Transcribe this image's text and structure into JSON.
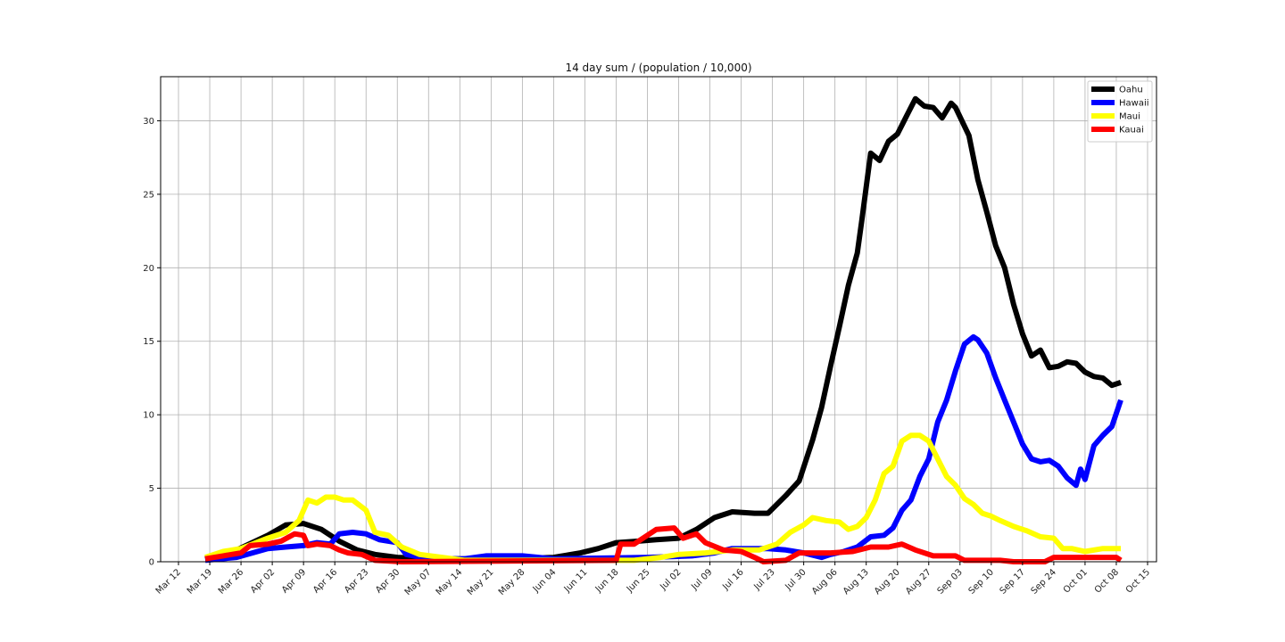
{
  "chart_data": {
    "type": "line",
    "title": "14 day sum / (population / 10,000)",
    "xlabel": "",
    "ylabel": "",
    "x_start": "Mar 18",
    "x_end": "Oct 09",
    "xlim": [
      "Mar 08",
      "Oct 17"
    ],
    "ylim": [
      0,
      33
    ],
    "x_tick_labels": [
      "Mar 12",
      "Mar 19",
      "Mar 26",
      "Apr 02",
      "Apr 09",
      "Apr 16",
      "Apr 23",
      "Apr 30",
      "May 07",
      "May 14",
      "May 21",
      "May 28",
      "Jun 04",
      "Jun 11",
      "Jun 18",
      "Jun 25",
      "Jul 02",
      "Jul 09",
      "Jul 16",
      "Jul 23",
      "Jul 30",
      "Aug 06",
      "Aug 13",
      "Aug 20",
      "Aug 27",
      "Sep 03",
      "Sep 10",
      "Sep 17",
      "Sep 24",
      "Oct 01",
      "Oct 08",
      "Oct 15"
    ],
    "y_ticks": [
      0,
      5,
      10,
      15,
      20,
      25,
      30
    ],
    "grid": true,
    "legend_position": "top-right",
    "series": [
      {
        "name": "Oahu",
        "color": "#000000",
        "points": [
          [
            "Mar 18",
            0.2
          ],
          [
            "Mar 25",
            0.8
          ],
          [
            "Apr 01",
            1.8
          ],
          [
            "Apr 05",
            2.5
          ],
          [
            "Apr 09",
            2.6
          ],
          [
            "Apr 13",
            2.2
          ],
          [
            "Apr 17",
            1.4
          ],
          [
            "Apr 21",
            0.8
          ],
          [
            "Apr 25",
            0.5
          ],
          [
            "Apr 30",
            0.3
          ],
          [
            "May 10",
            0.2
          ],
          [
            "May 25",
            0.2
          ],
          [
            "Jun 04",
            0.3
          ],
          [
            "Jun 10",
            0.6
          ],
          [
            "Jun 14",
            0.9
          ],
          [
            "Jun 18",
            1.3
          ],
          [
            "Jun 23",
            1.4
          ],
          [
            "Jun 27",
            1.5
          ],
          [
            "Jul 02",
            1.6
          ],
          [
            "Jul 06",
            2.2
          ],
          [
            "Jul 10",
            3.0
          ],
          [
            "Jul 14",
            3.4
          ],
          [
            "Jul 19",
            3.3
          ],
          [
            "Jul 22",
            3.3
          ],
          [
            "Jul 26",
            4.5
          ],
          [
            "Jul 29",
            5.5
          ],
          [
            "Aug 01",
            8.3
          ],
          [
            "Aug 03",
            10.5
          ],
          [
            "Aug 05",
            13.3
          ],
          [
            "Aug 07",
            16.0
          ],
          [
            "Aug 09",
            18.8
          ],
          [
            "Aug 11",
            21.0
          ],
          [
            "Aug 12",
            23.2
          ],
          [
            "Aug 14",
            27.8
          ],
          [
            "Aug 16",
            27.3
          ],
          [
            "Aug 18",
            28.6
          ],
          [
            "Aug 20",
            29.1
          ],
          [
            "Aug 22",
            30.3
          ],
          [
            "Aug 24",
            31.5
          ],
          [
            "Aug 26",
            31.0
          ],
          [
            "Aug 28",
            30.9
          ],
          [
            "Aug 30",
            30.2
          ],
          [
            "Sep 01",
            31.2
          ],
          [
            "Sep 02",
            30.9
          ],
          [
            "Sep 05",
            29.0
          ],
          [
            "Sep 07",
            26.0
          ],
          [
            "Sep 09",
            23.8
          ],
          [
            "Sep 11",
            21.5
          ],
          [
            "Sep 13",
            20.0
          ],
          [
            "Sep 15",
            17.5
          ],
          [
            "Sep 17",
            15.5
          ],
          [
            "Sep 19",
            14.0
          ],
          [
            "Sep 21",
            14.4
          ],
          [
            "Sep 23",
            13.2
          ],
          [
            "Sep 25",
            13.3
          ],
          [
            "Sep 27",
            13.6
          ],
          [
            "Sep 29",
            13.5
          ],
          [
            "Oct 01",
            12.9
          ],
          [
            "Oct 03",
            12.6
          ],
          [
            "Oct 05",
            12.5
          ],
          [
            "Oct 07",
            12.0
          ],
          [
            "Oct 09",
            12.2
          ]
        ]
      },
      {
        "name": "Hawaii",
        "color": "#0000ff",
        "points": [
          [
            "Mar 18",
            0.1
          ],
          [
            "Mar 25",
            0.3
          ],
          [
            "Apr 01",
            0.9
          ],
          [
            "Apr 05",
            1.0
          ],
          [
            "Apr 09",
            1.1
          ],
          [
            "Apr 12",
            1.3
          ],
          [
            "Apr 15",
            1.2
          ],
          [
            "Apr 17",
            1.9
          ],
          [
            "Apr 20",
            2.0
          ],
          [
            "Apr 23",
            1.9
          ],
          [
            "Apr 26",
            1.5
          ],
          [
            "Apr 30",
            1.3
          ],
          [
            "May 02",
            0.5
          ],
          [
            "May 07",
            0.2
          ],
          [
            "May 15",
            0.2
          ],
          [
            "May 20",
            0.4
          ],
          [
            "May 28",
            0.4
          ],
          [
            "Jun 04",
            0.2
          ],
          [
            "Jun 25",
            0.3
          ],
          [
            "Jul 05",
            0.4
          ],
          [
            "Jul 10",
            0.6
          ],
          [
            "Jul 14",
            0.9
          ],
          [
            "Jul 18",
            0.9
          ],
          [
            "Jul 22",
            0.9
          ],
          [
            "Jul 26",
            0.8
          ],
          [
            "Jul 30",
            0.6
          ],
          [
            "Aug 03",
            0.3
          ],
          [
            "Aug 05",
            0.5
          ],
          [
            "Aug 08",
            0.7
          ],
          [
            "Aug 11",
            1.0
          ],
          [
            "Aug 14",
            1.7
          ],
          [
            "Aug 17",
            1.8
          ],
          [
            "Aug 19",
            2.3
          ],
          [
            "Aug 21",
            3.5
          ],
          [
            "Aug 23",
            4.2
          ],
          [
            "Aug 25",
            5.8
          ],
          [
            "Aug 27",
            7.0
          ],
          [
            "Aug 29",
            9.5
          ],
          [
            "Aug 31",
            11.0
          ],
          [
            "Sep 02",
            13.0
          ],
          [
            "Sep 04",
            14.8
          ],
          [
            "Sep 06",
            15.3
          ],
          [
            "Sep 07",
            15.1
          ],
          [
            "Sep 09",
            14.2
          ],
          [
            "Sep 11",
            12.5
          ],
          [
            "Sep 13",
            11.0
          ],
          [
            "Sep 15",
            9.5
          ],
          [
            "Sep 17",
            8.0
          ],
          [
            "Sep 19",
            7.0
          ],
          [
            "Sep 21",
            6.8
          ],
          [
            "Sep 23",
            6.9
          ],
          [
            "Sep 25",
            6.5
          ],
          [
            "Sep 27",
            5.7
          ],
          [
            "Sep 29",
            5.2
          ],
          [
            "Sep 30",
            6.3
          ],
          [
            "Oct 01",
            5.6
          ],
          [
            "Oct 03",
            7.9
          ],
          [
            "Oct 05",
            8.6
          ],
          [
            "Oct 07",
            9.2
          ],
          [
            "Oct 09",
            11.0
          ]
        ]
      },
      {
        "name": "Maui",
        "color": "#ffff00",
        "points": [
          [
            "Mar 18",
            0.3
          ],
          [
            "Mar 22",
            0.7
          ],
          [
            "Mar 26",
            0.9
          ],
          [
            "Apr 01",
            1.6
          ],
          [
            "Apr 05",
            2.0
          ],
          [
            "Apr 08",
            2.8
          ],
          [
            "Apr 10",
            4.2
          ],
          [
            "Apr 12",
            4.0
          ],
          [
            "Apr 14",
            4.4
          ],
          [
            "Apr 16",
            4.4
          ],
          [
            "Apr 18",
            4.2
          ],
          [
            "Apr 20",
            4.2
          ],
          [
            "Apr 23",
            3.5
          ],
          [
            "Apr 25",
            2.0
          ],
          [
            "Apr 28",
            1.8
          ],
          [
            "May 01",
            1.0
          ],
          [
            "May 05",
            0.5
          ],
          [
            "May 10",
            0.3
          ],
          [
            "May 15",
            0.1
          ],
          [
            "Jun 22",
            0.1
          ],
          [
            "Jun 28",
            0.3
          ],
          [
            "Jul 02",
            0.5
          ],
          [
            "Jul 08",
            0.6
          ],
          [
            "Jul 14",
            0.8
          ],
          [
            "Jul 20",
            0.8
          ],
          [
            "Jul 24",
            1.2
          ],
          [
            "Jul 27",
            2.0
          ],
          [
            "Jul 30",
            2.5
          ],
          [
            "Aug 01",
            3.0
          ],
          [
            "Aug 04",
            2.8
          ],
          [
            "Aug 07",
            2.7
          ],
          [
            "Aug 09",
            2.2
          ],
          [
            "Aug 11",
            2.4
          ],
          [
            "Aug 13",
            3.0
          ],
          [
            "Aug 15",
            4.2
          ],
          [
            "Aug 17",
            6.0
          ],
          [
            "Aug 19",
            6.5
          ],
          [
            "Aug 21",
            8.2
          ],
          [
            "Aug 23",
            8.6
          ],
          [
            "Aug 25",
            8.6
          ],
          [
            "Aug 27",
            8.2
          ],
          [
            "Aug 29",
            7.0
          ],
          [
            "Aug 31",
            5.8
          ],
          [
            "Sep 02",
            5.2
          ],
          [
            "Sep 04",
            4.3
          ],
          [
            "Sep 06",
            3.9
          ],
          [
            "Sep 08",
            3.3
          ],
          [
            "Sep 10",
            3.1
          ],
          [
            "Sep 12",
            2.8
          ],
          [
            "Sep 15",
            2.4
          ],
          [
            "Sep 18",
            2.1
          ],
          [
            "Sep 21",
            1.7
          ],
          [
            "Sep 24",
            1.6
          ],
          [
            "Sep 26",
            0.9
          ],
          [
            "Sep 28",
            0.9
          ],
          [
            "Oct 01",
            0.7
          ],
          [
            "Oct 05",
            0.9
          ],
          [
            "Oct 09",
            0.9
          ]
        ]
      },
      {
        "name": "Kauai",
        "color": "#ff0000",
        "points": [
          [
            "Mar 18",
            0.2
          ],
          [
            "Mar 22",
            0.4
          ],
          [
            "Mar 26",
            0.6
          ],
          [
            "Mar 28",
            1.1
          ],
          [
            "Apr 01",
            1.2
          ],
          [
            "Apr 04",
            1.4
          ],
          [
            "Apr 07",
            1.9
          ],
          [
            "Apr 09",
            1.8
          ],
          [
            "Apr 10",
            1.1
          ],
          [
            "Apr 12",
            1.2
          ],
          [
            "Apr 15",
            1.1
          ],
          [
            "Apr 17",
            0.8
          ],
          [
            "Apr 19",
            0.6
          ],
          [
            "Apr 22",
            0.5
          ],
          [
            "Apr 25",
            0.1
          ],
          [
            "May 01",
            0.0
          ],
          [
            "Jun 18",
            0.1
          ],
          [
            "Jun 19",
            1.2
          ],
          [
            "Jun 22",
            1.2
          ],
          [
            "Jun 24",
            1.6
          ],
          [
            "Jun 27",
            2.2
          ],
          [
            "Jul 01",
            2.3
          ],
          [
            "Jul 03",
            1.6
          ],
          [
            "Jul 06",
            1.9
          ],
          [
            "Jul 08",
            1.3
          ],
          [
            "Jul 12",
            0.8
          ],
          [
            "Jul 16",
            0.7
          ],
          [
            "Jul 19",
            0.3
          ],
          [
            "Jul 21",
            0.0
          ],
          [
            "Jul 26",
            0.1
          ],
          [
            "Jul 29",
            0.6
          ],
          [
            "Aug 05",
            0.6
          ],
          [
            "Aug 10",
            0.7
          ],
          [
            "Aug 14",
            1.0
          ],
          [
            "Aug 18",
            1.0
          ],
          [
            "Aug 21",
            1.2
          ],
          [
            "Aug 24",
            0.8
          ],
          [
            "Aug 28",
            0.4
          ],
          [
            "Sep 02",
            0.4
          ],
          [
            "Sep 04",
            0.1
          ],
          [
            "Sep 12",
            0.1
          ],
          [
            "Sep 15",
            0.0
          ],
          [
            "Sep 22",
            0.0
          ],
          [
            "Sep 24",
            0.3
          ],
          [
            "Oct 08",
            0.3
          ],
          [
            "Oct 09",
            0.1
          ]
        ]
      }
    ]
  }
}
